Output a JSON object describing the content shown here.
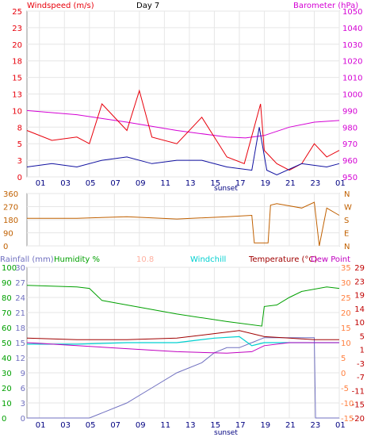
{
  "chart_data": [
    {
      "type": "line",
      "title": "Day 7",
      "left_axis_label": "Windspeed (m/s)",
      "right_axis_label": "Barometer (hPa)",
      "x_ticks": [
        "01",
        "03",
        "05",
        "07",
        "09",
        "11",
        "13",
        "15",
        "17",
        "19",
        "21",
        "23",
        "01"
      ],
      "x_note": "sunset",
      "y_left_ticks": [
        "0",
        "3",
        "5",
        "8",
        "10",
        "13",
        "15",
        "18",
        "20",
        "23",
        "25"
      ],
      "y_right_ticks": [
        "950",
        "960",
        "970",
        "980",
        "990",
        "1000",
        "1010",
        "1020",
        "1030",
        "1040",
        "1050"
      ],
      "grid": true,
      "colors": {
        "windspeed": "#e8000b",
        "wind_avg": "#1010a0",
        "barometer": "#d400d4"
      },
      "barometer": {
        "x": [
          0,
          4,
          8,
          12,
          16,
          17.5,
          19,
          21,
          23,
          25
        ],
        "y": [
          990,
          987.5,
          983,
          978,
          974,
          973.5,
          975,
          980,
          983,
          984
        ]
      },
      "wind_avg": {
        "x": [
          0,
          2,
          4,
          6,
          8,
          10,
          12,
          14,
          16,
          18,
          18.6,
          19.2,
          20,
          22,
          24,
          25
        ],
        "y": [
          1.5,
          2,
          1.5,
          2.5,
          3,
          2,
          2.5,
          2.5,
          1.5,
          1,
          7.5,
          1,
          0.3,
          2,
          1.5,
          2
        ]
      },
      "wind_gust": {
        "x": [
          0,
          2,
          4,
          5,
          6,
          8,
          9,
          10,
          12,
          14,
          16,
          17.4,
          18.7,
          19,
          20,
          21,
          22,
          23,
          24,
          25
        ],
        "y": [
          7,
          5.5,
          6,
          5,
          11,
          7,
          13,
          6,
          5,
          9,
          3,
          2,
          11,
          4,
          2,
          1,
          2,
          5,
          3,
          4
        ]
      }
    },
    {
      "type": "line",
      "y_right_ticks": [
        "N",
        "W",
        "S",
        "E",
        "N"
      ],
      "y_left_ticks": [
        "360",
        "270",
        "180",
        "90",
        "0"
      ],
      "colors": {
        "direction": "#c06000"
      },
      "direction": {
        "x": [
          0,
          4,
          8,
          12,
          16,
          18,
          18.2,
          19.3,
          19.5,
          20,
          22,
          23,
          23.4,
          24,
          25
        ],
        "y": [
          190,
          190,
          200,
          185,
          200,
          210,
          20,
          20,
          280,
          290,
          260,
          300,
          0,
          260,
          210
        ]
      }
    },
    {
      "type": "line",
      "legend": [
        {
          "label": "Rainfall (mm)",
          "color": "#7070c0"
        },
        {
          "label": "Humidity %",
          "color": "#00a000"
        },
        {
          "label": "10.8",
          "color": "#ffb0a0"
        },
        {
          "label": "Windchill",
          "color": "#00d0d0"
        },
        {
          "label": "Temperature (°C)",
          "color": "#a00000"
        },
        {
          "label": "Dew Point",
          "color": "#c000c0"
        }
      ],
      "y_left_ticks": [
        "0",
        "10",
        "20",
        "30",
        "40",
        "50",
        "60",
        "70",
        "80",
        "90",
        "100"
      ],
      "y_rain_ticks": [
        "0",
        "3",
        "6",
        "9",
        "12",
        "15",
        "18",
        "21",
        "24",
        "27",
        "30"
      ],
      "y_right_temp_ticks": [
        "-15",
        "-10",
        "-5",
        "0",
        "5",
        "10",
        "15",
        "20",
        "25",
        "30",
        "35"
      ],
      "y_right_dew_ticks": [
        "-20",
        "-15",
        "-11",
        "-7",
        "-3",
        "1",
        "5",
        "10",
        "14",
        "19",
        "23",
        "29"
      ],
      "x_ticks": [
        "01",
        "03",
        "05",
        "07",
        "09",
        "11",
        "13",
        "15",
        "17",
        "19",
        "21",
        "23",
        "01"
      ],
      "x_note": "sunset",
      "humidity": {
        "x": [
          0,
          4,
          5,
          6,
          8,
          12,
          16,
          18.8,
          19,
          20,
          21,
          22,
          24,
          25
        ],
        "y": [
          88,
          87,
          86,
          78,
          75,
          69,
          64,
          61,
          74,
          75,
          80,
          84,
          87,
          86
        ]
      },
      "temperature": {
        "x": [
          0,
          4,
          8,
          12,
          15,
          17,
          19,
          21,
          23,
          25
        ],
        "y": [
          11.5,
          11,
          11,
          11.5,
          13,
          14,
          12,
          11.5,
          11,
          11
        ]
      },
      "windchill": {
        "x": [
          0,
          4,
          8,
          12,
          15,
          17,
          18,
          19,
          21,
          23,
          25
        ],
        "y": [
          9.5,
          9.5,
          10,
          10,
          11.5,
          12,
          9,
          10,
          10,
          10,
          10
        ]
      },
      "dewpoint": {
        "x": [
          0,
          4,
          8,
          12,
          16,
          18,
          19,
          21,
          23,
          25
        ],
        "y": [
          10,
          9,
          8,
          7,
          6.5,
          7,
          9,
          10,
          10,
          10
        ]
      },
      "rain": {
        "x": [
          0,
          5,
          6,
          8,
          10,
          12,
          14,
          15,
          16,
          17,
          18,
          19,
          20,
          23,
          23.1,
          25
        ],
        "y": [
          0,
          0,
          1,
          3,
          6,
          9,
          11,
          13,
          14,
          14,
          15,
          16,
          16,
          16,
          0,
          0
        ]
      }
    }
  ]
}
